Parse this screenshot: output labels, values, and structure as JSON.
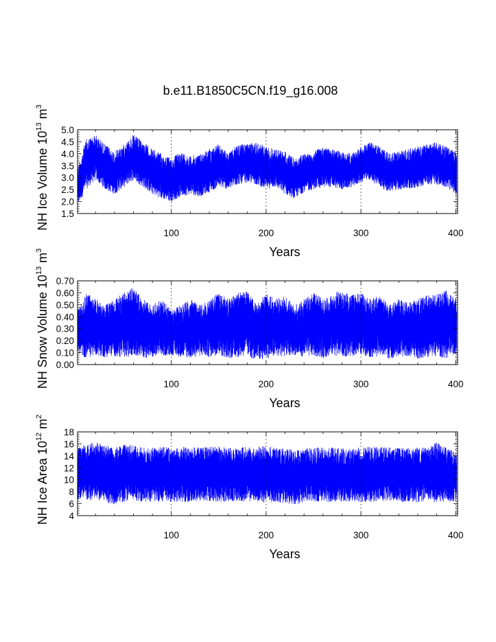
{
  "title": "b.e11.B1850C5CN.f19_g16.008",
  "chart_data": [
    {
      "type": "line",
      "ylabel": {
        "pre": "NH Ice Volume 10",
        "exp": "13",
        "mid": " m",
        "unit_exp": "3"
      },
      "xlabel": "Years",
      "xlim": [
        1,
        402
      ],
      "ylim": [
        1.5,
        5.0
      ],
      "x_ticks": [
        100,
        200,
        300,
        400
      ],
      "y_ticks": [
        1.5,
        2.0,
        2.5,
        3.0,
        3.5,
        4.0,
        4.5,
        5.0
      ],
      "y_tick_labels": [
        "1.5",
        "2.0",
        "2.5",
        "3.0",
        "3.5",
        "4.0",
        "4.5",
        "5.0"
      ],
      "gridlines_x": true,
      "line_color": "#0000ff",
      "series": [
        {
          "x": [
            1,
            10,
            20,
            30,
            40,
            50,
            60,
            70,
            80,
            90,
            100,
            110,
            120,
            130,
            140,
            150,
            160,
            170,
            180,
            190,
            200,
            210,
            220,
            230,
            240,
            250,
            260,
            270,
            280,
            290,
            300,
            310,
            320,
            330,
            340,
            350,
            360,
            370,
            380,
            390,
            400
          ],
          "max": [
            3.4,
            4.6,
            4.8,
            4.4,
            4.1,
            4.4,
            4.8,
            4.5,
            4.2,
            4.0,
            3.8,
            4.1,
            3.9,
            4.0,
            4.2,
            4.4,
            4.0,
            4.4,
            4.4,
            4.5,
            4.3,
            4.2,
            4.1,
            3.8,
            4.0,
            4.1,
            4.3,
            4.2,
            4.1,
            4.0,
            4.3,
            4.5,
            4.3,
            4.0,
            4.1,
            4.2,
            4.3,
            4.4,
            4.5,
            4.3,
            4.1
          ],
          "min": [
            1.8,
            2.5,
            2.9,
            2.5,
            2.3,
            2.6,
            2.9,
            2.6,
            2.3,
            2.1,
            2.0,
            2.2,
            2.3,
            2.2,
            2.4,
            2.6,
            2.5,
            2.7,
            2.8,
            2.7,
            2.5,
            2.6,
            2.3,
            2.1,
            2.4,
            2.5,
            2.6,
            2.6,
            2.5,
            2.6,
            2.8,
            2.9,
            2.6,
            2.4,
            2.5,
            2.5,
            2.6,
            2.7,
            2.7,
            2.6,
            2.3
          ]
        }
      ]
    },
    {
      "type": "line",
      "ylabel": {
        "pre": "NH Snow Volume 10",
        "exp": "13",
        "mid": " m",
        "unit_exp": "3"
      },
      "xlabel": "Years",
      "xlim": [
        1,
        402
      ],
      "ylim": [
        0.0,
        0.7
      ],
      "x_ticks": [
        100,
        200,
        300,
        400
      ],
      "y_ticks": [
        0.0,
        0.1,
        0.2,
        0.3,
        0.4,
        0.5,
        0.6,
        0.7
      ],
      "y_tick_labels": [
        "0.00",
        "0.10",
        "0.20",
        "0.30",
        "0.40",
        "0.50",
        "0.60",
        "0.70"
      ],
      "gridlines_x": true,
      "line_color": "#0000ff",
      "series": [
        {
          "x": [
            1,
            10,
            20,
            30,
            40,
            50,
            60,
            70,
            80,
            90,
            100,
            110,
            120,
            130,
            140,
            150,
            160,
            170,
            180,
            190,
            200,
            210,
            220,
            230,
            240,
            250,
            260,
            270,
            280,
            290,
            300,
            310,
            320,
            330,
            340,
            350,
            360,
            370,
            380,
            390,
            400
          ],
          "max": [
            0.45,
            0.6,
            0.55,
            0.5,
            0.55,
            0.6,
            0.65,
            0.55,
            0.5,
            0.55,
            0.45,
            0.5,
            0.55,
            0.5,
            0.55,
            0.6,
            0.55,
            0.6,
            0.62,
            0.5,
            0.6,
            0.55,
            0.58,
            0.5,
            0.55,
            0.6,
            0.55,
            0.6,
            0.62,
            0.58,
            0.6,
            0.55,
            0.58,
            0.5,
            0.55,
            0.52,
            0.55,
            0.58,
            0.6,
            0.62,
            0.55
          ],
          "min": [
            0.1,
            0.05,
            0.08,
            0.06,
            0.07,
            0.05,
            0.08,
            0.06,
            0.05,
            0.07,
            0.08,
            0.06,
            0.05,
            0.07,
            0.06,
            0.08,
            0.05,
            0.06,
            0.07,
            0.03,
            0.05,
            0.06,
            0.07,
            0.08,
            0.06,
            0.07,
            0.05,
            0.08,
            0.06,
            0.07,
            0.08,
            0.06,
            0.07,
            0.05,
            0.06,
            0.07,
            0.05,
            0.06,
            0.07,
            0.05,
            0.08
          ]
        }
      ]
    },
    {
      "type": "line",
      "ylabel": {
        "pre": "NH Ice Area 10",
        "exp": "12",
        "mid": " m",
        "unit_exp": "2"
      },
      "xlabel": "Years",
      "xlim": [
        1,
        402
      ],
      "ylim": [
        4,
        18
      ],
      "x_ticks": [
        100,
        200,
        300,
        400
      ],
      "y_ticks": [
        4,
        6,
        8,
        10,
        12,
        14,
        16,
        18
      ],
      "y_tick_labels": [
        "4",
        "6",
        "8",
        "10",
        "12",
        "14",
        "16",
        "18"
      ],
      "gridlines_x": true,
      "line_color": "#0000ff",
      "series": [
        {
          "x": [
            1,
            10,
            20,
            30,
            40,
            50,
            60,
            70,
            80,
            90,
            100,
            110,
            120,
            130,
            140,
            150,
            160,
            170,
            180,
            190,
            200,
            210,
            220,
            230,
            240,
            250,
            260,
            270,
            280,
            290,
            300,
            310,
            320,
            330,
            340,
            350,
            360,
            370,
            380,
            390,
            400
          ],
          "max": [
            15.2,
            16.0,
            16.3,
            15.8,
            15.6,
            15.9,
            15.7,
            15.5,
            15.4,
            15.6,
            15.3,
            15.5,
            15.6,
            15.4,
            15.5,
            15.6,
            15.3,
            15.4,
            15.6,
            15.4,
            15.8,
            15.3,
            15.2,
            15.0,
            15.4,
            15.3,
            15.5,
            15.4,
            15.2,
            15.3,
            15.4,
            15.6,
            15.5,
            15.4,
            15.3,
            15.4,
            15.5,
            15.3,
            16.3,
            15.4,
            14.8
          ],
          "min": [
            6.6,
            6.3,
            6.6,
            6.2,
            5.9,
            6.3,
            6.6,
            6.3,
            6.2,
            6.4,
            6.3,
            6.3,
            6.2,
            6.3,
            6.4,
            6.3,
            6.3,
            6.4,
            6.3,
            6.5,
            6.0,
            6.3,
            6.1,
            5.7,
            6.2,
            6.3,
            6.4,
            6.2,
            6.3,
            6.4,
            6.3,
            6.2,
            6.4,
            6.3,
            6.3,
            6.2,
            6.2,
            6.4,
            6.2,
            6.3,
            6.4
          ]
        }
      ]
    }
  ]
}
